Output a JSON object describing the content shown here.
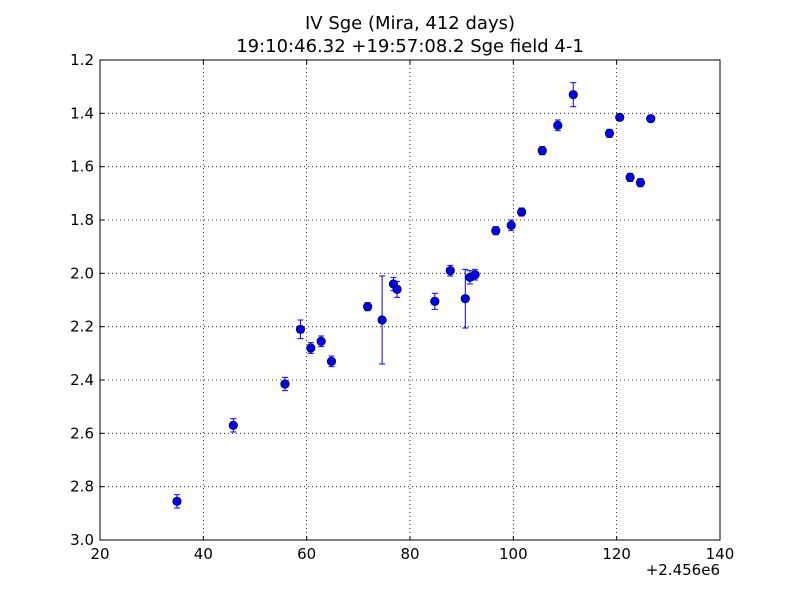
{
  "chart_data": {
    "type": "scatter",
    "title": "IV Sge (Mira, 412 days)",
    "subtitle": "19:10:46.32 +19:57:08.2 Sge field 4-1",
    "xlabel": "",
    "ylabel": "",
    "x_offset_label": "+2.456e6",
    "xlim": [
      20,
      140
    ],
    "ylim": [
      3.0,
      1.2
    ],
    "y_inverted": true,
    "grid": true,
    "x_ticks": [
      20,
      40,
      60,
      80,
      100,
      120,
      140
    ],
    "x_tick_labels": [
      "20",
      "40",
      "60",
      "80",
      "100",
      "120",
      "140"
    ],
    "y_ticks": [
      1.2,
      1.4,
      1.6,
      1.8,
      2.0,
      2.2,
      2.4,
      2.6,
      2.8,
      3.0
    ],
    "y_tick_labels": [
      "1.2",
      "1.4",
      "1.6",
      "1.8",
      "2.0",
      "2.2",
      "2.4",
      "2.6",
      "2.8",
      "3.0"
    ],
    "marker_color": "#0000ff",
    "points": [
      {
        "x": 34.9,
        "y": 2.855,
        "err": 0.025
      },
      {
        "x": 45.8,
        "y": 2.57,
        "err": 0.025
      },
      {
        "x": 55.8,
        "y": 2.415,
        "err": 0.025
      },
      {
        "x": 58.8,
        "y": 2.21,
        "err": 0.035
      },
      {
        "x": 60.8,
        "y": 2.28,
        "err": 0.02
      },
      {
        "x": 62.8,
        "y": 2.255,
        "err": 0.02
      },
      {
        "x": 64.8,
        "y": 2.33,
        "err": 0.02
      },
      {
        "x": 71.8,
        "y": 2.125,
        "err": 0.015
      },
      {
        "x": 74.6,
        "y": 2.175,
        "err": 0.165
      },
      {
        "x": 76.8,
        "y": 2.04,
        "err": 0.025
      },
      {
        "x": 77.5,
        "y": 2.06,
        "err": 0.03
      },
      {
        "x": 84.8,
        "y": 2.105,
        "err": 0.03
      },
      {
        "x": 87.8,
        "y": 1.99,
        "err": 0.02
      },
      {
        "x": 90.7,
        "y": 2.095,
        "err": 0.11
      },
      {
        "x": 91.6,
        "y": 2.015,
        "err": 0.025
      },
      {
        "x": 92.6,
        "y": 2.005,
        "err": 0.02
      },
      {
        "x": 96.6,
        "y": 1.84,
        "err": 0.015
      },
      {
        "x": 99.6,
        "y": 1.82,
        "err": 0.02
      },
      {
        "x": 101.6,
        "y": 1.77,
        "err": 0.015
      },
      {
        "x": 105.6,
        "y": 1.54,
        "err": 0.015
      },
      {
        "x": 108.6,
        "y": 1.445,
        "err": 0.02
      },
      {
        "x": 111.6,
        "y": 1.33,
        "err": 0.045
      },
      {
        "x": 118.6,
        "y": 1.475,
        "err": 0.015
      },
      {
        "x": 120.6,
        "y": 1.415,
        "err": 0.01
      },
      {
        "x": 122.6,
        "y": 1.64,
        "err": 0.015
      },
      {
        "x": 124.6,
        "y": 1.66,
        "err": 0.015
      },
      {
        "x": 126.6,
        "y": 1.42,
        "err": 0.01
      }
    ]
  }
}
